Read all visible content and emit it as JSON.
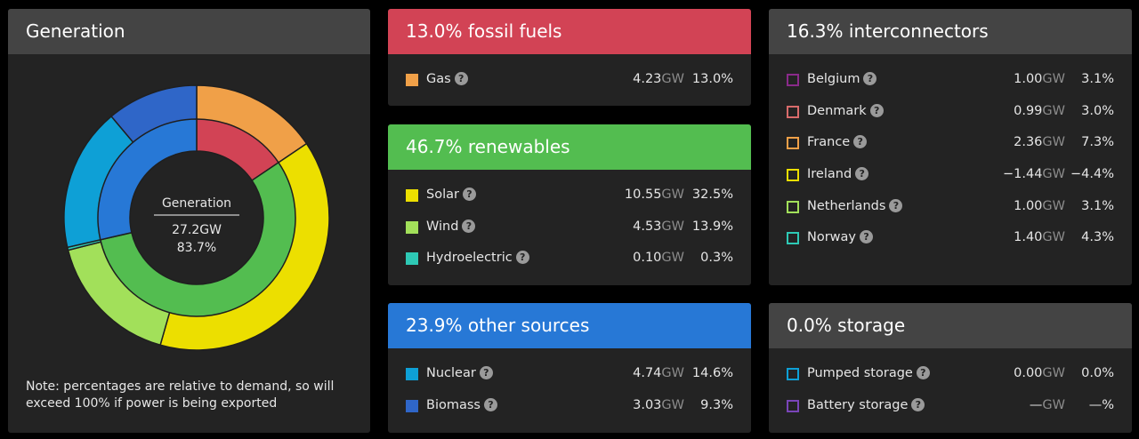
{
  "generation": {
    "title": "Generation",
    "center_label": "Generation",
    "center_value": "27.2GW",
    "center_pct": "83.7%",
    "note": "Note: percentages are relative to demand, so will exceed 100% if power is being exported"
  },
  "chart_data": {
    "type": "pie",
    "inner_ring": [
      {
        "name": "fossil fuels",
        "value": 13.0,
        "color": "#d24355"
      },
      {
        "name": "renewables",
        "value": 46.7,
        "color": "#53bd50"
      },
      {
        "name": "other sources",
        "value": 23.9,
        "color": "#2778d6"
      }
    ],
    "outer_ring": [
      {
        "name": "Gas",
        "value": 13.0,
        "color": "#f0a048"
      },
      {
        "name": "Solar",
        "value": 32.5,
        "color": "#ecdf00"
      },
      {
        "name": "Wind",
        "value": 13.9,
        "color": "#a2e05a"
      },
      {
        "name": "Hydroelectric",
        "value": 0.3,
        "color": "#2ec9b5"
      },
      {
        "name": "Nuclear",
        "value": 14.6,
        "color": "#0ea0d6"
      },
      {
        "name": "Biomass",
        "value": 9.3,
        "color": "#2f66c8"
      }
    ]
  },
  "fossil": {
    "title": "13.0% fossil fuels",
    "rows": [
      {
        "name": "Gas",
        "gw": "4.23",
        "unit": "GW",
        "pct": "13.0%",
        "color": "#f0a048"
      }
    ]
  },
  "renewables": {
    "title": "46.7% renewables",
    "rows": [
      {
        "name": "Solar",
        "gw": "10.55",
        "unit": "GW",
        "pct": "32.5%",
        "color": "#ecdf00"
      },
      {
        "name": "Wind",
        "gw": "4.53",
        "unit": "GW",
        "pct": "13.9%",
        "color": "#a2e05a"
      },
      {
        "name": "Hydroelectric",
        "gw": "0.10",
        "unit": "GW",
        "pct": "0.3%",
        "color": "#2ec9b5"
      }
    ]
  },
  "other": {
    "title": "23.9% other sources",
    "rows": [
      {
        "name": "Nuclear",
        "gw": "4.74",
        "unit": "GW",
        "pct": "14.6%",
        "color": "#0ea0d6"
      },
      {
        "name": "Biomass",
        "gw": "3.03",
        "unit": "GW",
        "pct": "9.3%",
        "color": "#2f66c8"
      }
    ]
  },
  "interconnectors": {
    "title": "16.3% interconnectors",
    "rows": [
      {
        "name": "Belgium",
        "gw": "1.00",
        "unit": "GW",
        "pct": "3.1%",
        "color": "#8a2a8a"
      },
      {
        "name": "Denmark",
        "gw": "0.99",
        "unit": "GW",
        "pct": "3.0%",
        "color": "#d86b6b"
      },
      {
        "name": "France",
        "gw": "2.36",
        "unit": "GW",
        "pct": "7.3%",
        "color": "#f0a048"
      },
      {
        "name": "Ireland",
        "gw": "−1.44",
        "unit": "GW",
        "pct": "−4.4%",
        "color": "#ecdf00"
      },
      {
        "name": "Netherlands",
        "gw": "1.00",
        "unit": "GW",
        "pct": "3.1%",
        "color": "#a2e05a"
      },
      {
        "name": "Norway",
        "gw": "1.40",
        "unit": "GW",
        "pct": "4.3%",
        "color": "#2ec9b5"
      }
    ]
  },
  "storage": {
    "title": "0.0% storage",
    "rows": [
      {
        "name": "Pumped storage",
        "gw": "0.00",
        "unit": "GW",
        "pct": "0.0%",
        "color": "#0ea0d6"
      },
      {
        "name": "Battery storage",
        "gw": "—",
        "unit": "GW",
        "pct": "—%",
        "color": "#7a45b8"
      }
    ]
  },
  "help_glyph": "?"
}
